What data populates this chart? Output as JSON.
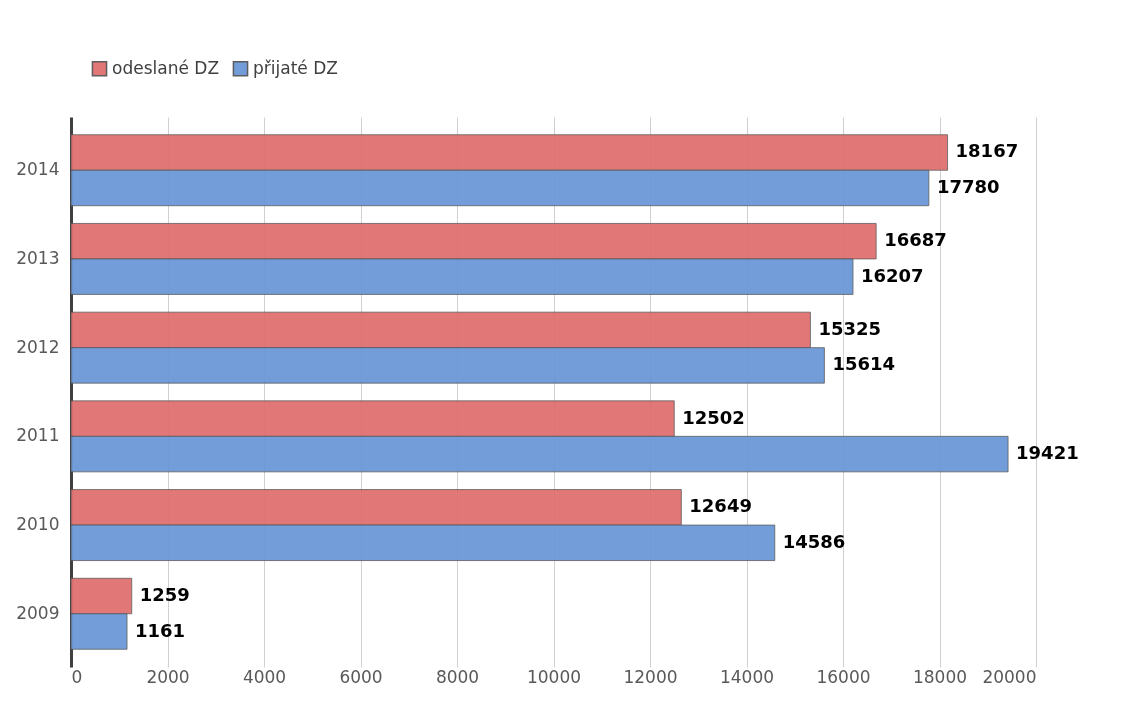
{
  "chart_data": {
    "type": "bar",
    "orientation": "horizontal",
    "categories": [
      "2014",
      "2013",
      "2012",
      "2011",
      "2010",
      "2009"
    ],
    "series": [
      {
        "name": "odeslané DZ",
        "color": "#e07070",
        "values": [
          18167,
          16687,
          15325,
          12502,
          12649,
          1259
        ]
      },
      {
        "name": "přijaté DZ",
        "color": "#6b98d8",
        "values": [
          17780,
          16207,
          15614,
          19421,
          14586,
          1161
        ]
      }
    ],
    "xlim": [
      0,
      20000
    ],
    "xticks": [
      0,
      2000,
      4000,
      6000,
      8000,
      10000,
      12000,
      14000,
      16000,
      18000,
      20000
    ],
    "grid": "x",
    "legend": "top",
    "data_labels": true
  }
}
